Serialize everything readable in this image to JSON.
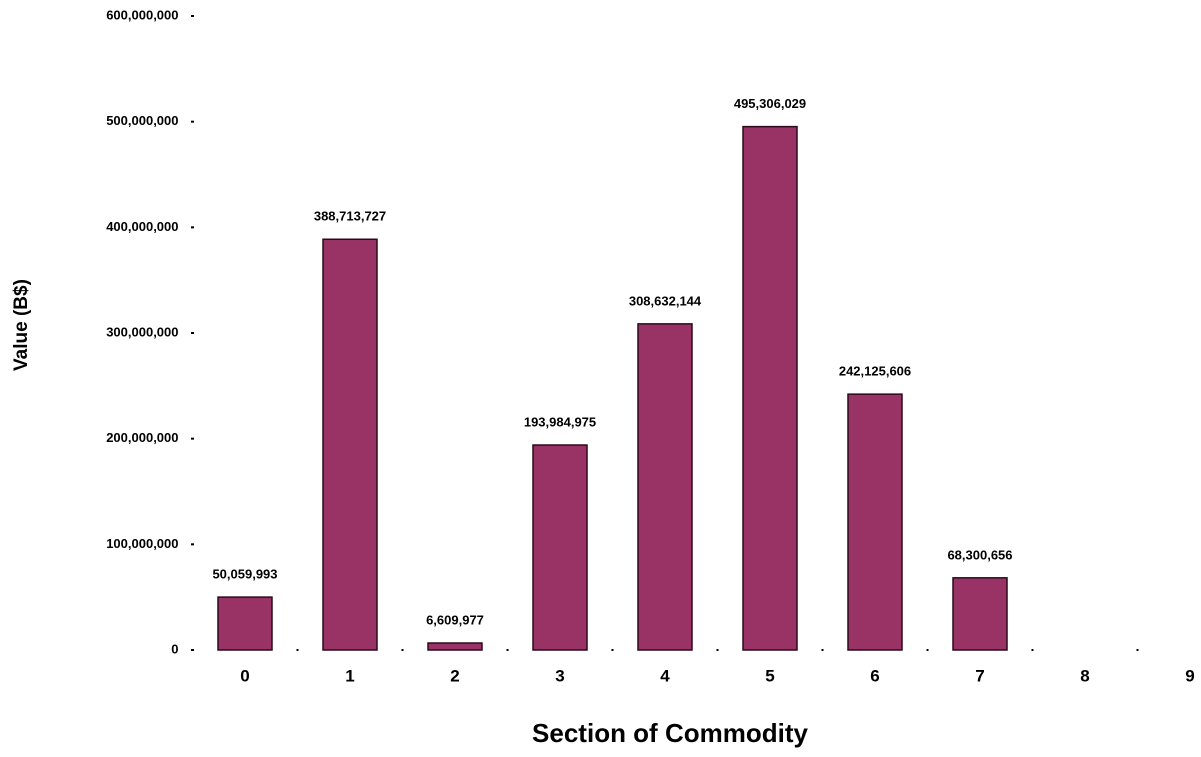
{
  "chart_data": {
    "type": "bar",
    "x_label": "Section of Commodity",
    "y_label": "Value (B$)",
    "categories": [
      "0",
      "1",
      "2",
      "3",
      "4",
      "5",
      "6",
      "7",
      "8",
      "9"
    ],
    "values": [
      50059993,
      388713727,
      6609977,
      193984975,
      308632144,
      495306029,
      242125606,
      68300656,
      null,
      null
    ],
    "value_labels": [
      "50,059,993",
      "388,713,727",
      "6,609,977",
      "193,984,975",
      "308,632,144",
      "495,306,029",
      "242,125,606",
      "68,300,656",
      null,
      null
    ],
    "color": "#993366",
    "ylim": [
      0,
      600000000
    ],
    "yticks": [
      {
        "value": 0,
        "label": "0"
      },
      {
        "value": 100000000,
        "label": "100,000,000"
      },
      {
        "value": 200000000,
        "label": "200,000,000"
      },
      {
        "value": 300000000,
        "label": "300,000,000"
      },
      {
        "value": 400000000,
        "label": "400,000,000"
      },
      {
        "value": 500000000,
        "label": "500,000,000"
      },
      {
        "value": 600000000,
        "label": "600,000,000"
      }
    ],
    "grid": false
  }
}
